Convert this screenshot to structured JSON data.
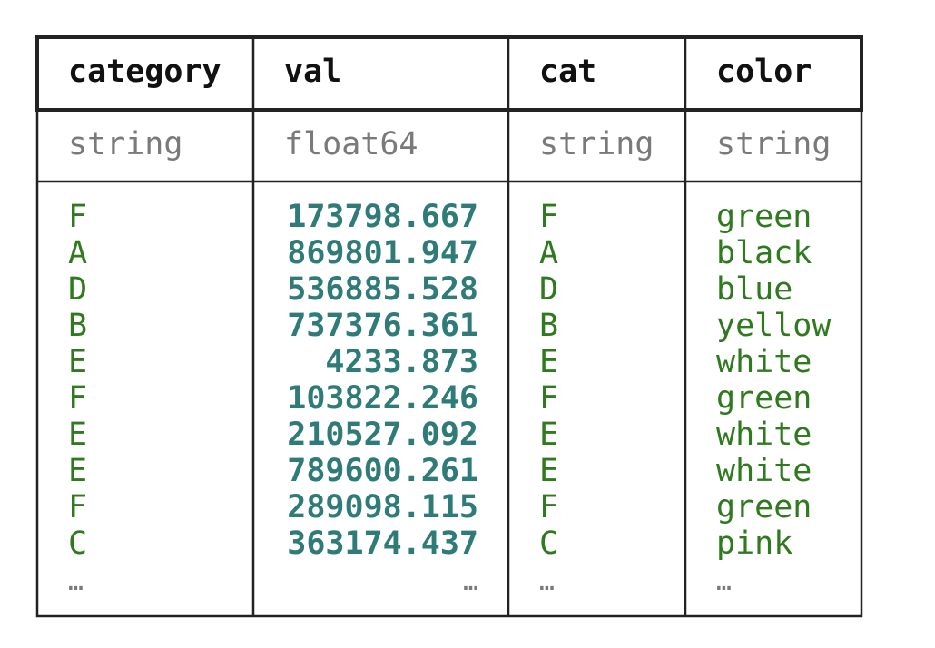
{
  "table": {
    "columns": [
      {
        "name": "category",
        "dtype": "string"
      },
      {
        "name": "val",
        "dtype": "float64"
      },
      {
        "name": "cat",
        "dtype": "string"
      },
      {
        "name": "color",
        "dtype": "string"
      }
    ],
    "rows": [
      [
        "F",
        173798.667,
        "F",
        "green"
      ],
      [
        "A",
        869801.947,
        "A",
        "black"
      ],
      [
        "D",
        536885.528,
        "D",
        "blue"
      ],
      [
        "B",
        737376.361,
        "B",
        "yellow"
      ],
      [
        "E",
        4233.873,
        "E",
        "white"
      ],
      [
        "F",
        103822.246,
        "F",
        "green"
      ],
      [
        "E",
        210527.092,
        "E",
        "white"
      ],
      [
        "E",
        789600.261,
        "E",
        "white"
      ],
      [
        "F",
        289098.115,
        "F",
        "green"
      ],
      [
        "C",
        363174.437,
        "C",
        "pink"
      ]
    ],
    "ellipsis": [
      "…",
      "…",
      "…",
      "…"
    ]
  }
}
